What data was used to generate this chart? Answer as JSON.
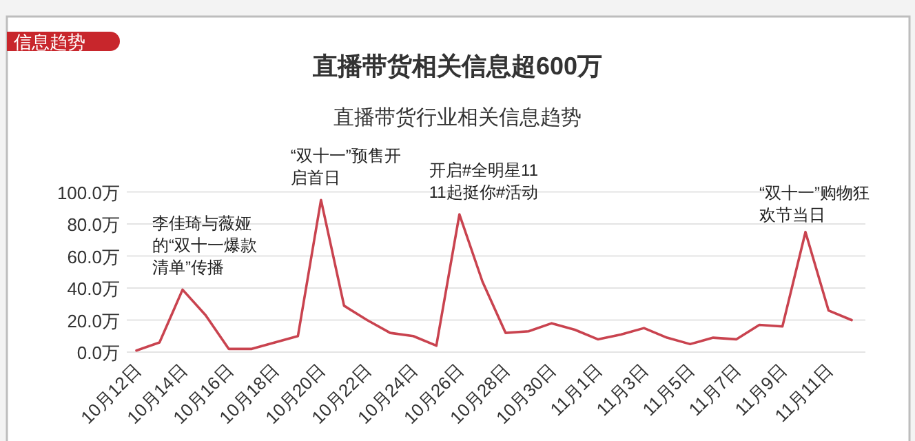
{
  "chart_data": {
    "type": "line",
    "title": "直播带货相关信息超600万",
    "subtitle": "直播带货行业相关信息趋势",
    "categories": [
      "10月12日",
      null,
      "10月14日",
      null,
      "10月16日",
      null,
      "10月18日",
      null,
      "10月20日",
      null,
      "10月22日",
      null,
      "10月24日",
      null,
      "10月26日",
      null,
      "10月28日",
      null,
      "10月30日",
      null,
      "11月1日",
      null,
      "11月3日",
      null,
      "11月5日",
      null,
      "11月7日",
      null,
      "11月9日",
      null,
      "11月11日",
      null
    ],
    "series": [
      {
        "color": "#c9434f",
        "values": [
          1,
          6,
          39,
          23,
          2,
          2,
          6,
          10,
          95,
          29,
          20,
          12,
          10,
          4,
          86,
          44,
          12,
          13,
          18,
          14,
          8,
          11,
          15,
          9,
          5,
          9,
          8,
          17,
          16,
          75,
          26,
          20
        ]
      }
    ],
    "ylim": [
      0,
      100
    ],
    "yticks": [
      {
        "value": 0,
        "label": "0.0万"
      },
      {
        "value": 20,
        "label": "20.0万"
      },
      {
        "value": 40,
        "label": "40.0万"
      },
      {
        "value": 60,
        "label": "60.0万"
      },
      {
        "value": 80,
        "label": "80.0万"
      },
      {
        "value": 100,
        "label": "100.0万"
      }
    ],
    "grid": "y",
    "marker": "none",
    "line_style": "solid",
    "annotations": [
      "信息趋势",
      {
        "text": "李佳琦与薇娅的“双十一爆款清单”传播",
        "x": "10月14日",
        "y": 39
      },
      {
        "text": "“双十一”预售开启首日",
        "x": "10月20日",
        "y": 95
      },
      {
        "text": "开启#全明星1111起挺你#活动",
        "x": "10月26日",
        "y": 86
      },
      "“双十一”购物狂欢节当日"
    ]
  }
}
